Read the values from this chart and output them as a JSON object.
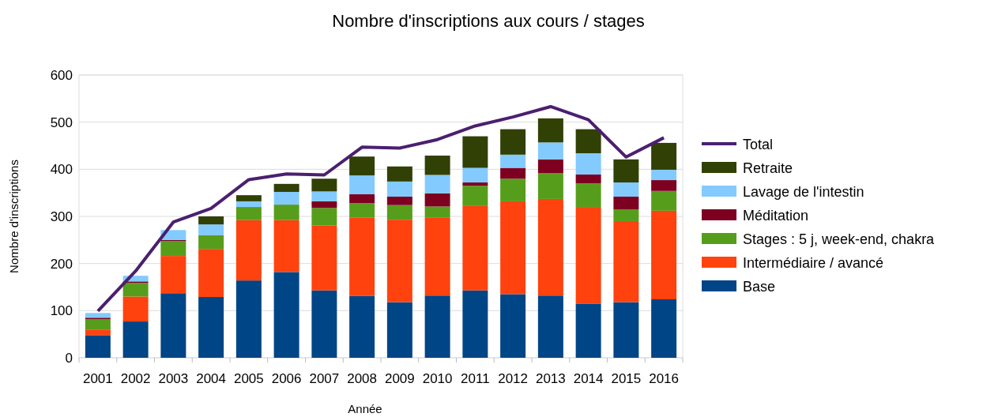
{
  "chart_data": {
    "type": "bar",
    "title": "Nombre d'inscriptions aux cours / stages",
    "xlabel": "Année",
    "ylabel": "Nombre d'inscriptions",
    "stacked": true,
    "grid": "y",
    "legend": "right",
    "ylim": [
      0,
      600
    ],
    "yticks": [
      0,
      100,
      200,
      300,
      400,
      500,
      600
    ],
    "categories": [
      "2001",
      "2002",
      "2003",
      "2004",
      "2005",
      "2006",
      "2007",
      "2008",
      "2009",
      "2010",
      "2011",
      "2012",
      "2013",
      "2014",
      "2015",
      "2016"
    ],
    "series": [
      {
        "name": "Base",
        "color": "#004586",
        "values": [
          48,
          77,
          137,
          129,
          164,
          182,
          143,
          131,
          118,
          132,
          143,
          135,
          132,
          115,
          118,
          124
        ]
      },
      {
        "name": "Intermédiaire / avancé",
        "color": "#ff420e",
        "values": [
          12,
          53,
          79,
          102,
          128,
          110,
          138,
          166,
          175,
          166,
          179,
          197,
          205,
          205,
          172,
          188
        ]
      },
      {
        "name": "Stages : 5 j, week-end, chakra",
        "color": "#579d1c",
        "values": [
          22,
          29,
          32,
          29,
          28,
          33,
          37,
          31,
          31,
          23,
          43,
          48,
          55,
          50,
          25,
          42
        ]
      },
      {
        "name": "Méditation",
        "color": "#7e0021",
        "values": [
          3,
          3,
          2,
          0,
          0,
          0,
          14,
          19,
          18,
          28,
          7,
          23,
          29,
          19,
          27,
          23
        ]
      },
      {
        "name": "Lavage de l'intestin",
        "color": "#83caff",
        "values": [
          10,
          12,
          21,
          23,
          12,
          27,
          21,
          40,
          32,
          39,
          31,
          28,
          36,
          45,
          30,
          22
        ]
      },
      {
        "name": "Retraite",
        "color": "#314004",
        "values": [
          0,
          0,
          0,
          17,
          13,
          17,
          27,
          40,
          32,
          41,
          67,
          54,
          51,
          51,
          49,
          57
        ]
      },
      {
        "name": "Total",
        "type": "line",
        "color": "#4b1f6f",
        "marker": "none",
        "values": [
          99,
          184,
          288,
          317,
          378,
          390,
          388,
          447,
          445,
          463,
          492,
          511,
          533,
          505,
          426,
          467
        ]
      }
    ]
  }
}
